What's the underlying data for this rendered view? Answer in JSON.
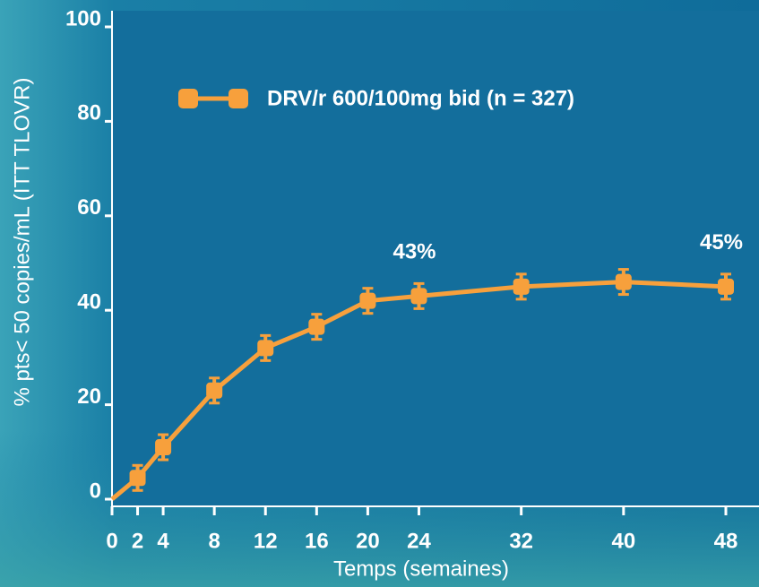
{
  "chart_data": {
    "type": "line",
    "xlabel": "Temps (semaines)",
    "ylabel": "% pts< 50 copies/mL (ITT TLOVR)",
    "x": [
      0,
      2,
      4,
      8,
      12,
      16,
      20,
      24,
      32,
      40,
      48
    ],
    "series": [
      {
        "name": "DRV/r 600/100mg bid (n = 327)",
        "color": "#f7a03c",
        "values": [
          0,
          4.5,
          11,
          23,
          32,
          36.5,
          42,
          43,
          45,
          46,
          45
        ],
        "value_labels": [
          null,
          null,
          null,
          null,
          null,
          null,
          null,
          "43%",
          null,
          null,
          "45%"
        ]
      }
    ],
    "xlim": [
      0,
      48
    ],
    "xticks": [
      0,
      2,
      4,
      8,
      12,
      16,
      20,
      24,
      32,
      40,
      48
    ],
    "ylim": [
      0,
      100
    ],
    "yticks": [
      0,
      20,
      40,
      60,
      80,
      100
    ],
    "legend": "top"
  }
}
